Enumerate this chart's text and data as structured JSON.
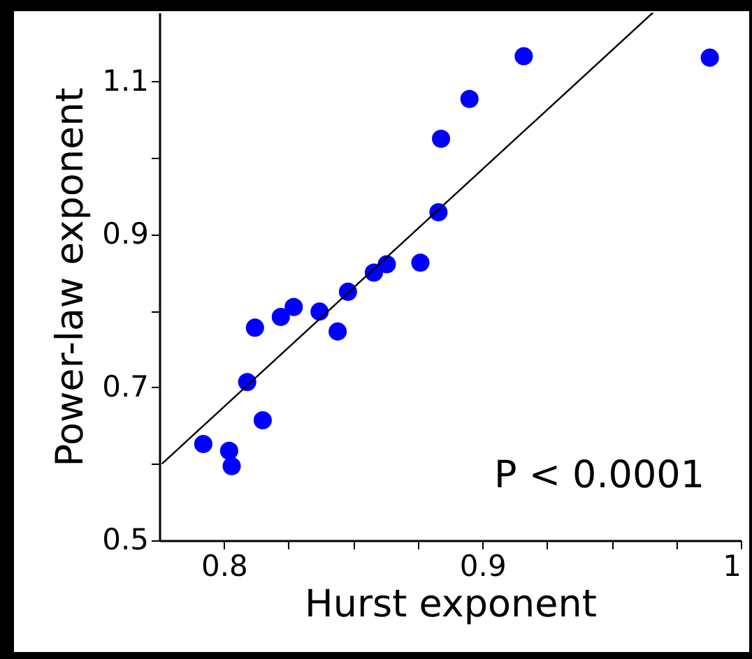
{
  "chart_data": {
    "type": "scatter",
    "xlabel": "Hurst exponent",
    "ylabel": "Power-law exponent",
    "grid": false,
    "xlim": [
      0.775,
      1
    ],
    "xticks": [
      0.8,
      {
        "value": 0.825,
        "label": null
      },
      {
        "value": 0.85,
        "label": null
      },
      {
        "value": 0.875,
        "label": null
      },
      0.9,
      {
        "value": 0.925,
        "label": null
      },
      {
        "value": 0.95,
        "label": null
      },
      {
        "value": 0.975,
        "label": null
      },
      1
    ],
    "ylim": [
      0.5,
      1.19
    ],
    "yticks": [
      0.5,
      {
        "value": 0.6,
        "label": null
      },
      0.7,
      {
        "value": 0.8,
        "label": null
      },
      0.9,
      {
        "value": 1.0,
        "label": null
      },
      1.1
    ],
    "annotations": [
      "P < 0.0001"
    ],
    "series": [
      {
        "marker": "circle",
        "color": "#0000ff",
        "x": [
          0.792,
          0.802,
          0.803,
          0.809,
          0.812,
          0.815,
          0.822,
          0.827,
          0.837,
          0.844,
          0.848,
          0.858,
          0.863,
          0.876,
          0.883,
          0.884,
          0.895,
          0.916,
          0.988
        ],
        "values": [
          0.626,
          0.617,
          0.597,
          0.707,
          0.778,
          0.657,
          0.792,
          0.805,
          0.799,
          0.773,
          0.825,
          0.85,
          0.861,
          0.863,
          0.929,
          1.025,
          1.077,
          1.133,
          1.131
        ]
      },
      {
        "type": "line",
        "color": "#000000",
        "line_style": "solid",
        "marker": "none",
        "x": [
          0.776,
          0.966
        ],
        "values": [
          0.6,
          1.19
        ]
      }
    ]
  }
}
